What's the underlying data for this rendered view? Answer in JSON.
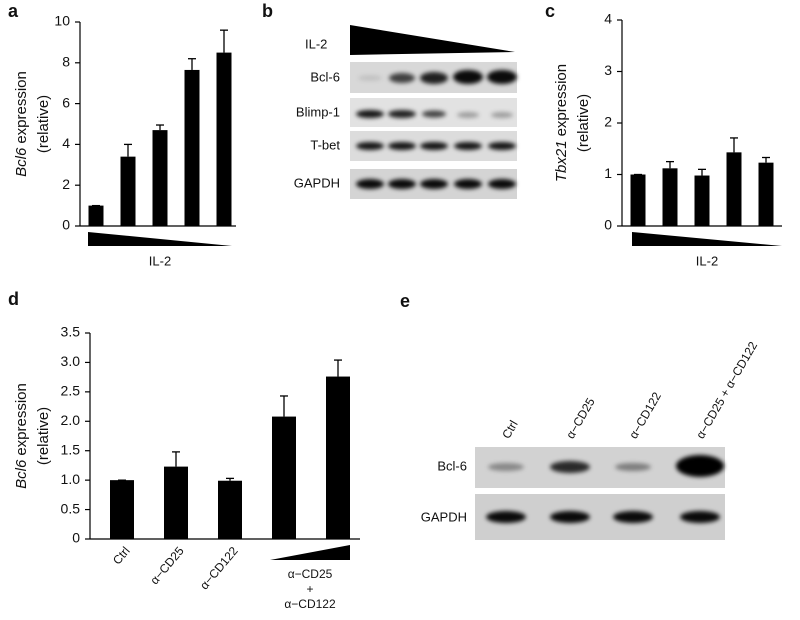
{
  "chart_data": [
    {
      "type": "bar",
      "panel": "a",
      "ylabel": {
        "gene": "Bcl6",
        "text": "expression",
        "unit": "(relative)"
      },
      "xlabel": "IL-2",
      "categories": [
        null,
        null,
        null,
        null,
        null
      ],
      "values": [
        1,
        3.4,
        4.7,
        7.65,
        8.5
      ],
      "errors": [
        0,
        0.6,
        0.25,
        0.55,
        1.1
      ],
      "color": "#000000",
      "ylim": [
        0,
        10
      ],
      "yticks": [
        0,
        2,
        4,
        6,
        8,
        10
      ]
    },
    {
      "type": "bar",
      "panel": "c",
      "ylabel": {
        "gene": "Tbx21",
        "text": "expression",
        "unit": "(relative)"
      },
      "xlabel": "IL-2",
      "categories": [
        null,
        null,
        null,
        null,
        null
      ],
      "values": [
        1,
        1.12,
        0.98,
        1.43,
        1.23
      ],
      "errors": [
        0,
        0.13,
        0.12,
        0.28,
        0.1
      ],
      "color": "#000000",
      "ylim": [
        0,
        4
      ],
      "yticks": [
        0,
        1,
        2,
        3,
        4
      ]
    },
    {
      "type": "bar",
      "panel": "d",
      "ylabel": {
        "gene": "Bcl6",
        "text": "expression",
        "unit": "(relative)"
      },
      "categories": [
        "Ctrl",
        "α−CD25",
        "α−CD122",
        null,
        null
      ],
      "group_label": [
        "α−CD25",
        "+",
        "α−CD122"
      ],
      "values": [
        1,
        1.23,
        0.99,
        2.08,
        2.76
      ],
      "errors": [
        0,
        0.25,
        0.04,
        0.35,
        0.28
      ],
      "color": "#000000",
      "ylim": [
        0,
        3.5
      ],
      "yticks": [
        0,
        0.5,
        {
          "value": 1,
          "label": "1.0"
        },
        1.5,
        {
          "value": 2,
          "label": "2.0"
        },
        2.5,
        {
          "value": 3,
          "label": "3.0"
        },
        3.5
      ]
    }
  ],
  "blots": [
    {
      "panel": "b",
      "ladder": "IL-2",
      "rows": [
        "Bcl-6",
        "Blimp-1",
        "T-bet",
        "GAPDH"
      ]
    },
    {
      "panel": "e",
      "lanes": [
        "Ctrl",
        "α−CD25",
        "α−CD122",
        "α−CD25 + α−CD122"
      ],
      "rows": [
        "Bcl-6",
        "GAPDH"
      ]
    }
  ]
}
